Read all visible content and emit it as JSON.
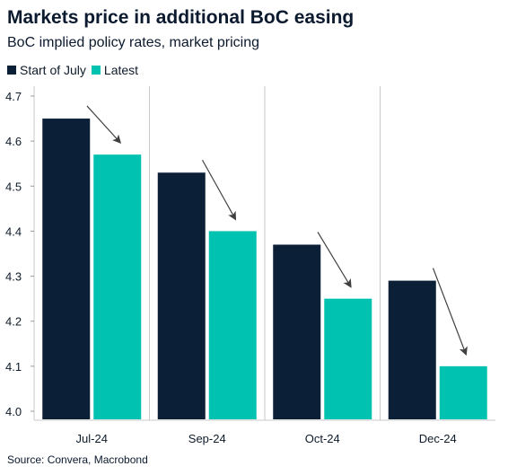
{
  "title": "Markets price in additional BoC easing",
  "subtitle": "BoC implied policy rates, market pricing",
  "source": "Source: Convera, Macrobond",
  "colors": {
    "start_of_july": "#0b1f37",
    "latest": "#00c2b0",
    "grid": "#c8c8c8",
    "arrow": "#404040"
  },
  "chart_data": {
    "type": "bar",
    "categories": [
      "Jul-24",
      "Sep-24",
      "Oct-24",
      "Dec-24"
    ],
    "series": [
      {
        "name": "Start of July",
        "values": [
          4.65,
          4.53,
          4.37,
          4.29
        ]
      },
      {
        "name": "Latest",
        "values": [
          4.57,
          4.4,
          4.25,
          4.1
        ]
      }
    ],
    "ylim": [
      4.0,
      4.7
    ],
    "yticks": [
      "4.0",
      "4.1",
      "4.2",
      "4.3",
      "4.4",
      "4.5",
      "4.6",
      "4.7"
    ],
    "xlabel": "",
    "ylabel": "",
    "legend_position": "top-left",
    "annotations": "downward arrows above each pair of bars"
  }
}
